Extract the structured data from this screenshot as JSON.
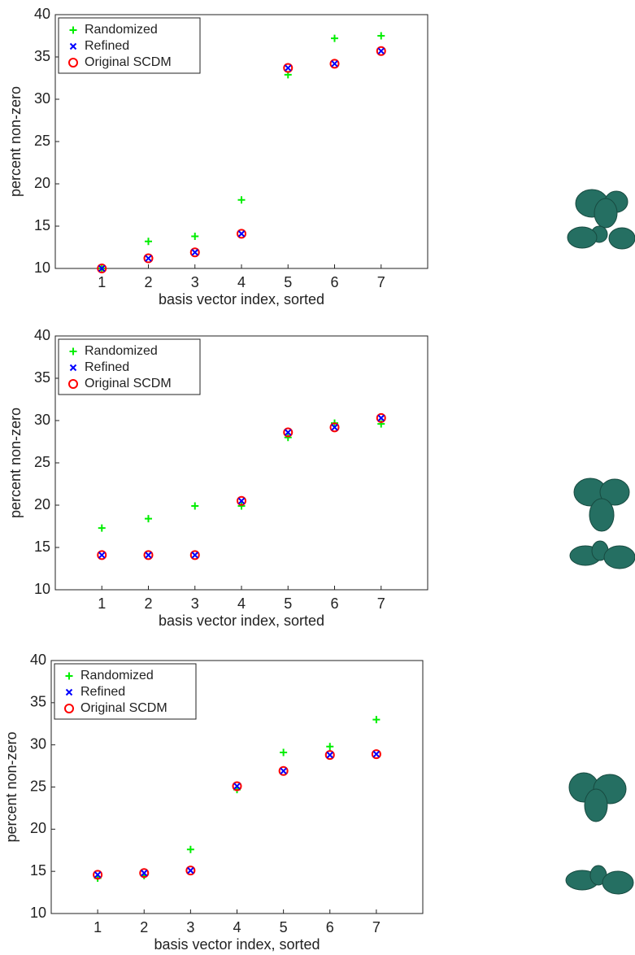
{
  "chart_data": [
    {
      "type": "scatter",
      "x_label": "basis vector index, sorted",
      "y_label": "percent non-zero",
      "x": [
        1,
        2,
        3,
        4,
        5,
        6,
        7
      ],
      "xlim": [
        0,
        8
      ],
      "xticks": [
        1,
        2,
        3,
        4,
        5,
        6,
        7
      ],
      "ylim": [
        10,
        40
      ],
      "yticks": [
        10,
        15,
        20,
        25,
        30,
        35,
        40
      ],
      "legend": "upper left",
      "series": [
        {
          "name": "Randomized",
          "color": "#00ee00",
          "marker": "plus",
          "values": [
            10,
            13.2,
            13.8,
            18.1,
            32.9,
            37.2,
            37.5
          ]
        },
        {
          "name": "Refined",
          "color": "#0000ff",
          "marker": "x",
          "values": [
            10,
            11.2,
            11.9,
            14.1,
            33.7,
            34.2,
            35.7
          ]
        },
        {
          "name": "Original SCDM",
          "color": "#ff0000",
          "marker": "circle",
          "values": [
            10,
            11.2,
            11.9,
            14.1,
            33.7,
            34.2,
            35.7
          ]
        }
      ]
    },
    {
      "type": "scatter",
      "x_label": "basis vector index, sorted",
      "y_label": "percent non-zero",
      "x": [
        1,
        2,
        3,
        4,
        5,
        6,
        7
      ],
      "xlim": [
        0,
        8
      ],
      "xticks": [
        1,
        2,
        3,
        4,
        5,
        6,
        7
      ],
      "ylim": [
        10,
        40
      ],
      "yticks": [
        10,
        15,
        20,
        25,
        30,
        35,
        40
      ],
      "legend": "upper left",
      "series": [
        {
          "name": "Randomized",
          "color": "#00ee00",
          "marker": "plus",
          "values": [
            17.3,
            18.4,
            19.9,
            19.9,
            28.0,
            29.7,
            29.6
          ]
        },
        {
          "name": "Refined",
          "color": "#0000ff",
          "marker": "x",
          "values": [
            14.1,
            14.1,
            14.1,
            20.5,
            28.6,
            29.2,
            30.3
          ]
        },
        {
          "name": "Original SCDM",
          "color": "#ff0000",
          "marker": "circle",
          "values": [
            14.1,
            14.1,
            14.1,
            20.5,
            28.6,
            29.2,
            30.3
          ]
        }
      ]
    },
    {
      "type": "scatter",
      "x_label": "basis vector index, sorted",
      "y_label": "percent non-zero",
      "x": [
        1,
        2,
        3,
        4,
        5,
        6,
        7
      ],
      "xlim": [
        0,
        8
      ],
      "xticks": [
        1,
        2,
        3,
        4,
        5,
        6,
        7
      ],
      "ylim": [
        10,
        40
      ],
      "yticks": [
        10,
        15,
        20,
        25,
        30,
        35,
        40
      ],
      "legend": "upper left",
      "series": [
        {
          "name": "Randomized",
          "color": "#00ee00",
          "marker": "plus",
          "values": [
            14.2,
            14.5,
            17.6,
            24.7,
            29.1,
            29.8,
            33.0
          ]
        },
        {
          "name": "Refined",
          "color": "#0000ff",
          "marker": "x",
          "values": [
            14.6,
            14.8,
            15.1,
            25.1,
            26.9,
            28.8,
            28.9
          ]
        },
        {
          "name": "Original SCDM",
          "color": "#ff0000",
          "marker": "circle",
          "values": [
            14.6,
            14.8,
            15.1,
            25.1,
            26.9,
            28.8,
            28.9
          ]
        }
      ]
    }
  ]
}
